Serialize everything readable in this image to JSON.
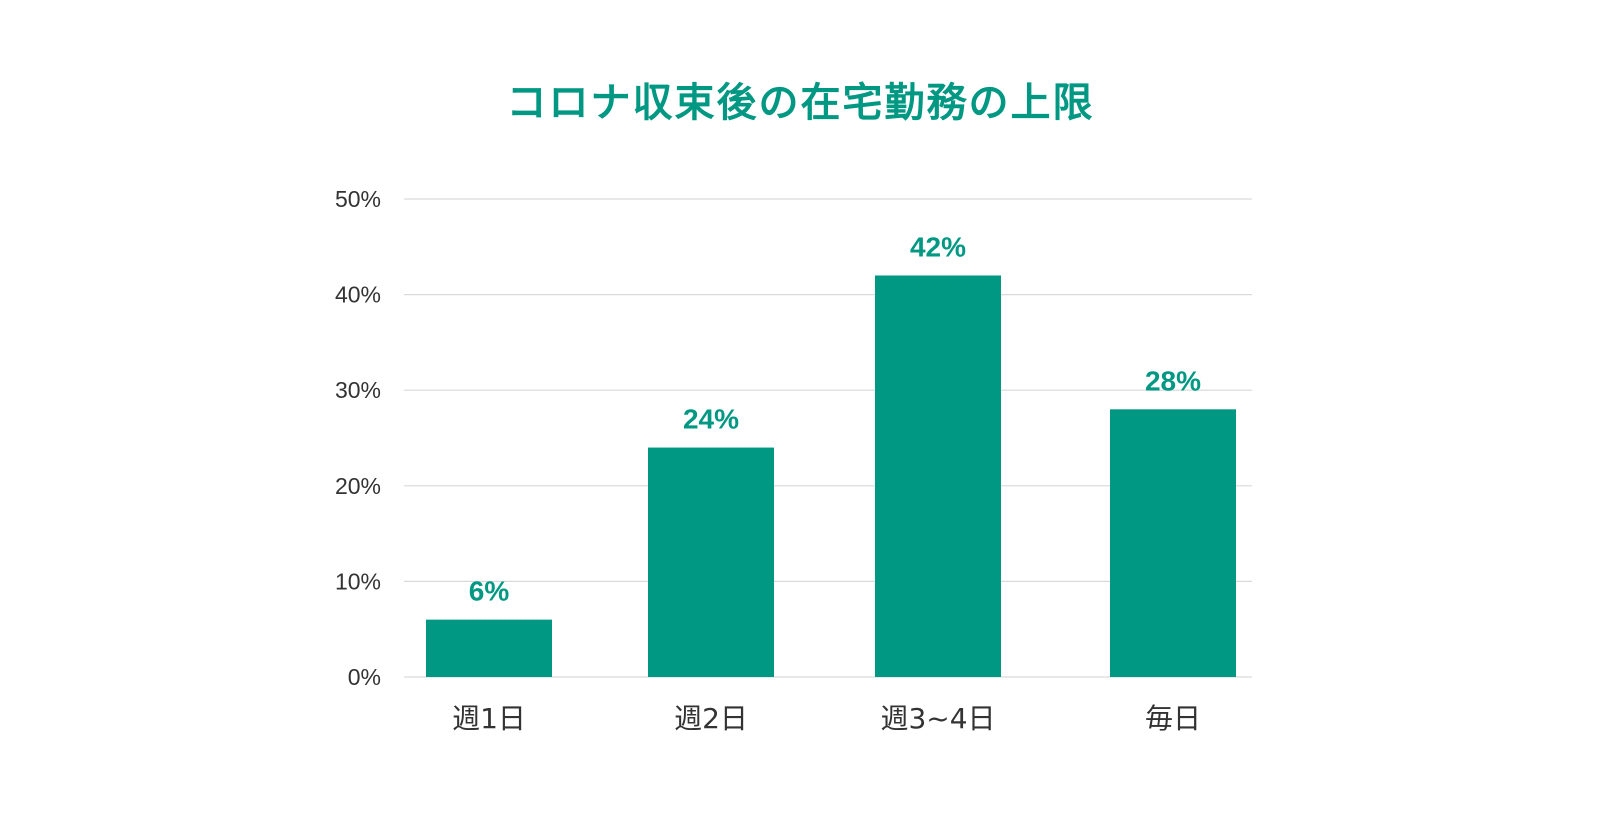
{
  "chart_data": {
    "type": "bar",
    "title": "コロナ収束後の在宅勤務の上限",
    "categories": [
      "週1日",
      "週2日",
      "週3~4日",
      "毎日"
    ],
    "values": [
      6,
      24,
      42,
      28
    ],
    "value_labels": [
      "6%",
      "24%",
      "42%",
      "28%"
    ],
    "yticks": [
      0,
      10,
      20,
      30,
      40,
      50
    ],
    "ytick_labels": [
      "0%",
      "10%",
      "20%",
      "30%",
      "40%",
      "50%"
    ],
    "ylim": [
      0,
      50
    ],
    "xlabel": "",
    "ylabel": "",
    "grid": true,
    "legend": "none",
    "bar_color": "#009882",
    "title_color": "#009882",
    "grid_color": "#d9d9d9",
    "text_color": "#333333"
  }
}
